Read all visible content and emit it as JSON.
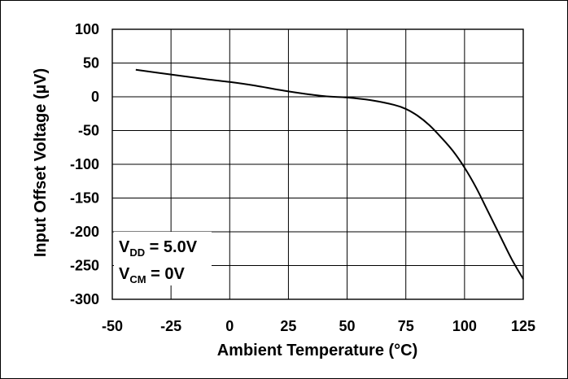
{
  "chart_data": {
    "type": "line",
    "xlabel": "Ambient Temperature (°C)",
    "ylabel": "Input Offset Voltage (µV)",
    "xlim": [
      -50,
      125
    ],
    "ylim": [
      -300,
      100
    ],
    "xticks": [
      -50,
      -25,
      0,
      25,
      50,
      75,
      100,
      125
    ],
    "yticks": [
      100,
      50,
      0,
      -50,
      -100,
      -150,
      -200,
      -250,
      -300
    ],
    "grid": true,
    "annotations": [
      {
        "main": "V",
        "sub": "DD",
        "rest": " = 5.0V"
      },
      {
        "main": "V",
        "sub": "CM",
        "rest": " = 0V"
      }
    ],
    "series": [
      {
        "x": [
          -40,
          -25,
          -10,
          0,
          10,
          25,
          40,
          50,
          60,
          70,
          75,
          80,
          85,
          90,
          95,
          100,
          105,
          110,
          115,
          120,
          125
        ],
        "values": [
          40,
          33,
          26,
          22,
          17,
          8,
          1,
          -1,
          -5,
          -12,
          -18,
          -28,
          -42,
          -60,
          -80,
          -105,
          -135,
          -170,
          -205,
          -240,
          -270
        ]
      }
    ]
  }
}
